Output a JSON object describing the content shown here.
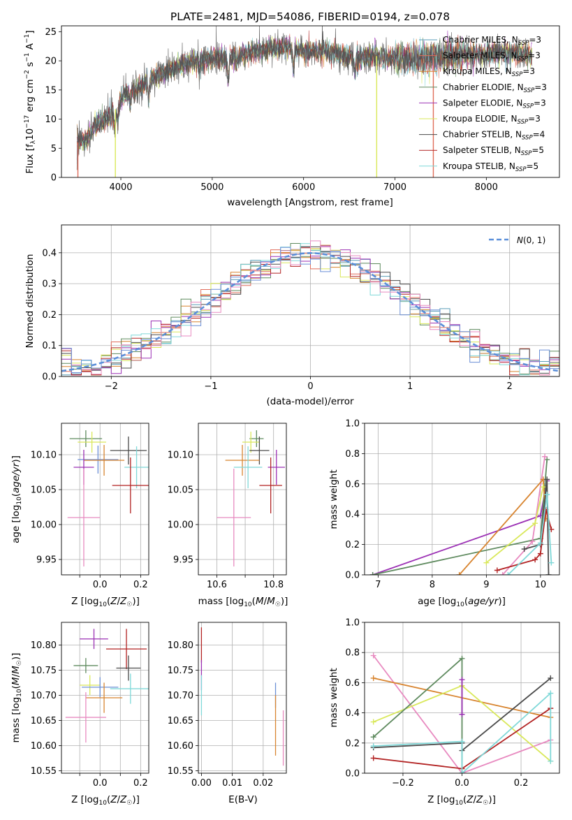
{
  "chart_data": [
    {
      "id": "spectrum",
      "type": "line",
      "title": "PLATE=2481, MJD=54086, FIBERID=0194, z=0.078",
      "xlabel": "wavelength [Angstrom, rest frame]",
      "ylabel": "Flux [f_λ10^-17 erg cm^-2 s^-1 A^-1]",
      "xlim": [
        3350,
        8800
      ],
      "ylim": [
        0,
        26
      ],
      "xticks": [
        4000,
        5000,
        6000,
        7000,
        8000
      ],
      "yticks": [
        0,
        5,
        10,
        15,
        20,
        25
      ],
      "grid": false,
      "legend_position": "top-right",
      "continuum": [
        [
          3550,
          6.0
        ],
        [
          3650,
          7.0
        ],
        [
          3750,
          9.5
        ],
        [
          3900,
          10.5
        ],
        [
          4000,
          13.5
        ],
        [
          4200,
          15.5
        ],
        [
          4400,
          17.5
        ],
        [
          4600,
          19.0
        ],
        [
          4800,
          20.0
        ],
        [
          5000,
          20.5
        ],
        [
          5200,
          20.5
        ],
        [
          5400,
          21.5
        ],
        [
          5600,
          22.0
        ],
        [
          5800,
          22.5
        ],
        [
          6000,
          21.5
        ],
        [
          6200,
          21.8
        ],
        [
          6400,
          21.0
        ],
        [
          6600,
          20.5
        ],
        [
          6800,
          20.8
        ],
        [
          7000,
          20.5
        ],
        [
          7200,
          20.3
        ],
        [
          7400,
          20.5
        ],
        [
          7600,
          21.0
        ],
        [
          7800,
          21.2
        ],
        [
          8000,
          21.0
        ],
        [
          8200,
          21.5
        ],
        [
          8500,
          21.0
        ]
      ],
      "series": [
        {
          "name": "Chabrier MILES, N_SSP=3",
          "name_base": "Chabrier MILES, N",
          "name_sub": "SSP",
          "name_val": "=3",
          "color": "#5a9eb8"
        },
        {
          "name": "Salpeter MILES, N_SSP=3",
          "name_base": "Salpeter MILES, N",
          "name_sub": "SSP",
          "name_val": "=3",
          "color": "#e06c5a"
        },
        {
          "name": "Kroupa MILES, N_SSP=3",
          "name_base": "Kroupa MILES, N",
          "name_sub": "SSP",
          "name_val": "=3",
          "color": "#d8842f"
        },
        {
          "name": "Chabrier ELODIE, N_SSP=3",
          "name_base": "Chabrier ELODIE, N",
          "name_sub": "SSP",
          "name_val": "=3",
          "color": "#5e8a5e"
        },
        {
          "name": "Salpeter ELODIE, N_SSP=3",
          "name_base": "Salpeter ELODIE, N",
          "name_sub": "SSP",
          "name_val": "=3",
          "color": "#9b30b4"
        },
        {
          "name": "Kroupa ELODIE, N_SSP=3",
          "name_base": "Kroupa ELODIE, N",
          "name_sub": "SSP",
          "name_val": "=3",
          "color": "#d9e85a"
        },
        {
          "name": "Chabrier STELIB, N_SSP=4",
          "name_base": "Chabrier STELIB, N",
          "name_sub": "SSP",
          "name_val": "=4",
          "color": "#4a4a4a"
        },
        {
          "name": "Salpeter STELIB, N_SSP=5",
          "name_base": "Salpeter STELIB, N",
          "name_sub": "SSP",
          "name_val": "=5",
          "color": "#b22222"
        },
        {
          "name": "Kroupa STELIB, N_SSP=5",
          "name_base": "Kroupa STELIB, N",
          "name_sub": "SSP",
          "name_val": "=5",
          "color": "#7fd8d8"
        }
      ]
    },
    {
      "id": "residuals",
      "type": "histogram",
      "xlabel": "(data-model)/error",
      "ylabel": "Normed distribution",
      "xlim": [
        -2.5,
        2.5
      ],
      "ylim": [
        0,
        0.49
      ],
      "xticks": [
        -2,
        -1,
        0,
        1,
        2
      ],
      "yticks": [
        0.0,
        0.1,
        0.2,
        0.3,
        0.4
      ],
      "grid": true,
      "legend_label": "N(0,1)",
      "legend_position": "top-right",
      "bin_width": 0.1,
      "colors": [
        "#5a9eb8",
        "#e06c5a",
        "#d8842f",
        "#5e8a5e",
        "#9b30b4",
        "#d9e85a",
        "#4a4a4a",
        "#b22222",
        "#7fd8d8",
        "#e88ac0",
        "#6b8fd6"
      ]
    },
    {
      "id": "age_vs_Z",
      "type": "errorbar",
      "xlabel": "Z [log10(Z/Z☉)]",
      "ylabel": "age [log10(age/yr)]",
      "xlim": [
        -0.19,
        0.24
      ],
      "ylim": [
        9.928,
        10.145
      ],
      "xticks": [
        -0.1,
        0.0,
        0.1,
        0.2
      ],
      "xticklabels": [
        "",
        "0.0",
        "",
        "0.2"
      ],
      "yticks": [
        9.95,
        10.0,
        10.05,
        10.1
      ],
      "grid": true,
      "points": [
        {
          "x": -0.07,
          "xerr": 0.08,
          "y": 10.123,
          "yerr": 0.012,
          "color": "#5e8a5e"
        },
        {
          "x": -0.04,
          "xerr": 0.07,
          "y": 10.118,
          "yerr": 0.015,
          "color": "#d9e85a"
        },
        {
          "x": 0.14,
          "xerr": 0.09,
          "y": 10.106,
          "yerr": 0.02,
          "color": "#4a4a4a"
        },
        {
          "x": -0.01,
          "xerr": 0.1,
          "y": 10.093,
          "yerr": 0.02,
          "color": "#6b8fd6"
        },
        {
          "x": 0.02,
          "xerr": 0.1,
          "y": 10.092,
          "yerr": 0.022,
          "color": "#d8842f"
        },
        {
          "x": -0.08,
          "xerr": 0.05,
          "y": 10.082,
          "yerr": 0.025,
          "color": "#9b30b4"
        },
        {
          "x": 0.18,
          "xerr": 0.06,
          "y": 10.082,
          "yerr": 0.03,
          "color": "#7fd8d8"
        },
        {
          "x": 0.15,
          "xerr": 0.09,
          "y": 10.056,
          "yerr": 0.04,
          "color": "#b22222"
        },
        {
          "x": -0.08,
          "xerr": 0.08,
          "y": 10.01,
          "yerr": 0.07,
          "color": "#e88ac0"
        }
      ]
    },
    {
      "id": "age_vs_mass",
      "type": "errorbar",
      "xlabel": "mass [log10(M/M☉)]",
      "xlim": [
        10.535,
        10.845
      ],
      "ylim": [
        9.928,
        10.145
      ],
      "xticks": [
        10.6,
        10.7,
        10.8
      ],
      "xticklabels": [
        "10.6",
        "",
        "10.8"
      ],
      "yticks": [
        9.95,
        10.0,
        10.05,
        10.1
      ],
      "grid": true,
      "points": [
        {
          "x": 10.74,
          "xerr": 0.025,
          "y": 10.123,
          "yerr": 0.012,
          "color": "#5e8a5e"
        },
        {
          "x": 10.72,
          "xerr": 0.03,
          "y": 10.118,
          "yerr": 0.015,
          "color": "#d9e85a"
        },
        {
          "x": 10.75,
          "xerr": 0.035,
          "y": 10.106,
          "yerr": 0.02,
          "color": "#4a4a4a"
        },
        {
          "x": 10.69,
          "xerr": 0.06,
          "y": 10.092,
          "yerr": 0.022,
          "color": "#d8842f"
        },
        {
          "x": 10.81,
          "xerr": 0.03,
          "y": 10.082,
          "yerr": 0.025,
          "color": "#9b30b4"
        },
        {
          "x": 10.71,
          "xerr": 0.05,
          "y": 10.082,
          "yerr": 0.03,
          "color": "#7fd8d8"
        },
        {
          "x": 10.79,
          "xerr": 0.04,
          "y": 10.056,
          "yerr": 0.04,
          "color": "#b22222"
        },
        {
          "x": 10.66,
          "xerr": 0.06,
          "y": 10.01,
          "yerr": 0.07,
          "color": "#e88ac0"
        }
      ]
    },
    {
      "id": "weight_vs_age",
      "type": "line",
      "xlabel": "age [log10(age/yr)]",
      "ylabel": "mass weight",
      "xlim": [
        6.75,
        10.35
      ],
      "ylim": [
        0,
        1
      ],
      "xticks": [
        7,
        8,
        9,
        10
      ],
      "yticks": [
        0.0,
        0.2,
        0.4,
        0.6,
        0.8,
        1.0
      ],
      "grid": true,
      "series": [
        {
          "color": "#9b30b4",
          "x": [
            6.9,
            10.0,
            10.12
          ],
          "y": [
            0.0,
            0.39,
            0.62
          ]
        },
        {
          "color": "#5e8a5e",
          "x": [
            6.9,
            10.0,
            10.12
          ],
          "y": [
            0.0,
            0.24,
            0.76
          ]
        },
        {
          "color": "#e88ac0",
          "x": [
            9.3,
            9.85,
            10.08
          ],
          "y": [
            0.0,
            0.22,
            0.78
          ]
        },
        {
          "color": "#d8842f",
          "x": [
            8.5,
            10.05,
            10.1
          ],
          "y": [
            0.0,
            0.63,
            0.37
          ]
        },
        {
          "color": "#d9e85a",
          "x": [
            9.0,
            9.9,
            10.05
          ],
          "y": [
            0.08,
            0.34,
            0.58
          ]
        },
        {
          "color": "#4a4a4a",
          "x": [
            9.7,
            10.0,
            10.12,
            10.15
          ],
          "y": [
            0.17,
            0.2,
            0.63,
            0.0
          ]
        },
        {
          "color": "#b22222",
          "x": [
            9.2,
            9.9,
            10.0,
            10.1,
            10.2
          ],
          "y": [
            0.03,
            0.1,
            0.14,
            0.43,
            0.3
          ]
        },
        {
          "color": "#7fd8d8",
          "x": [
            9.4,
            10.0,
            10.12,
            10.2
          ],
          "y": [
            0.0,
            0.21,
            0.53,
            0.08
          ]
        }
      ]
    },
    {
      "id": "mass_vs_Z",
      "type": "errorbar",
      "xlabel": "Z [log10(Z/Z☉)]",
      "ylabel": "mass [log10(M/M☉)]",
      "xlim": [
        -0.19,
        0.24
      ],
      "ylim": [
        10.545,
        10.845
      ],
      "xticks": [
        -0.1,
        0.0,
        0.1,
        0.2
      ],
      "xticklabels": [
        "",
        "0.0",
        "",
        "0.2"
      ],
      "yticks": [
        10.55,
        10.6,
        10.65,
        10.7,
        10.75,
        10.8
      ],
      "grid": true,
      "points": [
        {
          "x": -0.03,
          "xerr": 0.07,
          "y": 10.812,
          "yerr": 0.02,
          "color": "#9b30b4"
        },
        {
          "x": 0.13,
          "xerr": 0.1,
          "y": 10.792,
          "yerr": 0.04,
          "color": "#b22222"
        },
        {
          "x": -0.07,
          "xerr": 0.06,
          "y": 10.759,
          "yerr": 0.015,
          "color": "#5e8a5e"
        },
        {
          "x": 0.14,
          "xerr": 0.06,
          "y": 10.754,
          "yerr": 0.025,
          "color": "#4a4a4a"
        },
        {
          "x": -0.05,
          "xerr": 0.05,
          "y": 10.72,
          "yerr": 0.02,
          "color": "#d9e85a"
        },
        {
          "x": 0.0,
          "xerr": 0.09,
          "y": 10.716,
          "yerr": 0.02,
          "color": "#6b8fd6"
        },
        {
          "x": 0.15,
          "xerr": 0.1,
          "y": 10.713,
          "yerr": 0.03,
          "color": "#7fd8d8"
        },
        {
          "x": 0.02,
          "xerr": 0.09,
          "y": 10.695,
          "yerr": 0.03,
          "color": "#d8842f"
        },
        {
          "x": -0.07,
          "xerr": 0.1,
          "y": 10.656,
          "yerr": 0.05,
          "color": "#e88ac0"
        }
      ]
    },
    {
      "id": "mass_vs_ebv",
      "type": "errorbar",
      "xlabel": "E(B-V)",
      "xlim": [
        -0.001,
        0.0275
      ],
      "ylim": [
        10.545,
        10.845
      ],
      "xticks": [
        0.0,
        0.01,
        0.02
      ],
      "xticklabels": [
        "0.00",
        "0.01",
        "0.02"
      ],
      "yticks": [
        10.55,
        10.6,
        10.65,
        10.7,
        10.75,
        10.8
      ],
      "grid": true,
      "points": [
        {
          "x": 0.0,
          "xerr": 0.0,
          "y": 10.8,
          "yerr": 0.035,
          "color": "#b22222"
        },
        {
          "x": 0.0,
          "xerr": 0.0,
          "y": 10.74,
          "yerr": 0.03,
          "color": "#9b30b4"
        },
        {
          "x": 0.0,
          "xerr": 0.0,
          "y": 10.7,
          "yerr": 0.04,
          "color": "#7fd8d8"
        },
        {
          "x": 0.024,
          "xerr": 0.0,
          "y": 10.7,
          "yerr": 0.025,
          "color": "#6b8fd6"
        },
        {
          "x": 0.024,
          "xerr": 0.0,
          "y": 10.64,
          "yerr": 0.06,
          "color": "#d8842f"
        },
        {
          "x": 0.0265,
          "xerr": 0.0,
          "y": 10.615,
          "yerr": 0.055,
          "color": "#e88ac0"
        }
      ]
    },
    {
      "id": "weight_vs_Z",
      "type": "line",
      "xlabel": "Z [log10(Z/Z☉)]",
      "ylabel": "mass weight",
      "xlim": [
        -0.33,
        0.33
      ],
      "ylim": [
        0,
        1
      ],
      "xticks": [
        -0.2,
        0.0,
        0.2
      ],
      "yticks": [
        0.0,
        0.2,
        0.4,
        0.6,
        0.8,
        1.0
      ],
      "grid": true,
      "series": [
        {
          "color": "#e88ac0",
          "x": [
            -0.3,
            0.0,
            0.3
          ],
          "y": [
            0.78,
            0.0,
            0.22
          ]
        },
        {
          "color": "#d8842f",
          "x": [
            -0.3,
            0.3
          ],
          "y": [
            0.63,
            0.37
          ]
        },
        {
          "color": "#d9e85a",
          "x": [
            -0.3,
            0.0,
            0.3
          ],
          "y": [
            0.34,
            0.58,
            0.08
          ]
        },
        {
          "color": "#5e8a5e",
          "x": [
            -0.3,
            0.0,
            0.0
          ],
          "y": [
            0.24,
            0.76,
            0.0
          ]
        },
        {
          "color": "#9b30b4",
          "x": [
            0.0,
            0.0
          ],
          "y": [
            0.62,
            0.39
          ]
        },
        {
          "color": "#4a4a4a",
          "x": [
            -0.3,
            0.0,
            0.0,
            0.3
          ],
          "y": [
            0.17,
            0.2,
            0.15,
            0.63
          ]
        },
        {
          "color": "#b22222",
          "x": [
            -0.3,
            0.0,
            0.3
          ],
          "y": [
            0.1,
            0.03,
            0.43
          ]
        },
        {
          "color": "#7fd8d8",
          "x": [
            -0.3,
            0.0,
            0.0,
            0.3,
            0.3
          ],
          "y": [
            0.18,
            0.21,
            0.0,
            0.53,
            0.08
          ]
        }
      ]
    }
  ]
}
